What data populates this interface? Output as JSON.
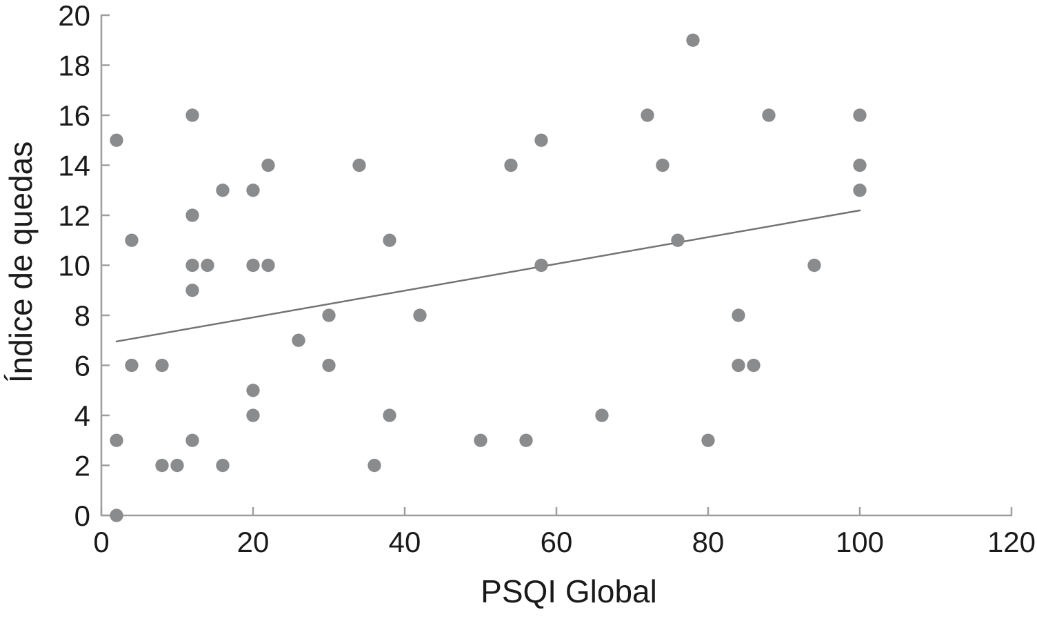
{
  "figure": {
    "background": "#ffffff"
  },
  "chart_data": {
    "type": "scatter",
    "title": "",
    "xlabel": "PSQI Global",
    "ylabel": "Índice de quedas",
    "xlim": [
      0,
      120
    ],
    "ylim": [
      0,
      20
    ],
    "xticks": [
      0,
      20,
      40,
      60,
      80,
      100,
      120
    ],
    "yticks": [
      0,
      2,
      4,
      6,
      8,
      10,
      12,
      14,
      16,
      18,
      20
    ],
    "grid": false,
    "legend": "none",
    "points": [
      [
        2,
        0
      ],
      [
        2,
        3
      ],
      [
        2,
        15
      ],
      [
        4,
        6
      ],
      [
        4,
        11
      ],
      [
        8,
        2
      ],
      [
        8,
        6
      ],
      [
        10,
        2
      ],
      [
        12,
        3
      ],
      [
        12,
        9
      ],
      [
        12,
        10
      ],
      [
        12,
        12
      ],
      [
        12,
        16
      ],
      [
        14,
        10
      ],
      [
        16,
        2
      ],
      [
        16,
        13
      ],
      [
        20,
        4
      ],
      [
        20,
        5
      ],
      [
        20,
        10
      ],
      [
        20,
        13
      ],
      [
        22,
        10
      ],
      [
        22,
        14
      ],
      [
        26,
        7
      ],
      [
        30,
        6
      ],
      [
        30,
        8
      ],
      [
        34,
        14
      ],
      [
        36,
        2
      ],
      [
        38,
        4
      ],
      [
        38,
        11
      ],
      [
        42,
        8
      ],
      [
        50,
        3
      ],
      [
        54,
        14
      ],
      [
        56,
        3
      ],
      [
        58,
        10
      ],
      [
        58,
        15
      ],
      [
        66,
        4
      ],
      [
        72,
        16
      ],
      [
        74,
        14
      ],
      [
        76,
        11
      ],
      [
        78,
        19
      ],
      [
        80,
        3
      ],
      [
        84,
        6
      ],
      [
        84,
        8
      ],
      [
        86,
        6
      ],
      [
        88,
        16
      ],
      [
        94,
        10
      ],
      [
        100,
        13
      ],
      [
        100,
        14
      ],
      [
        100,
        16
      ]
    ],
    "trendline": {
      "x1": 1.9,
      "y1": 6.95,
      "x2": 100.1,
      "y2": 12.2
    },
    "colors": {
      "point": "#8a8b8d",
      "trend": "#737373",
      "axis": "#9e9e9e",
      "text": "#1a1a1a"
    }
  }
}
